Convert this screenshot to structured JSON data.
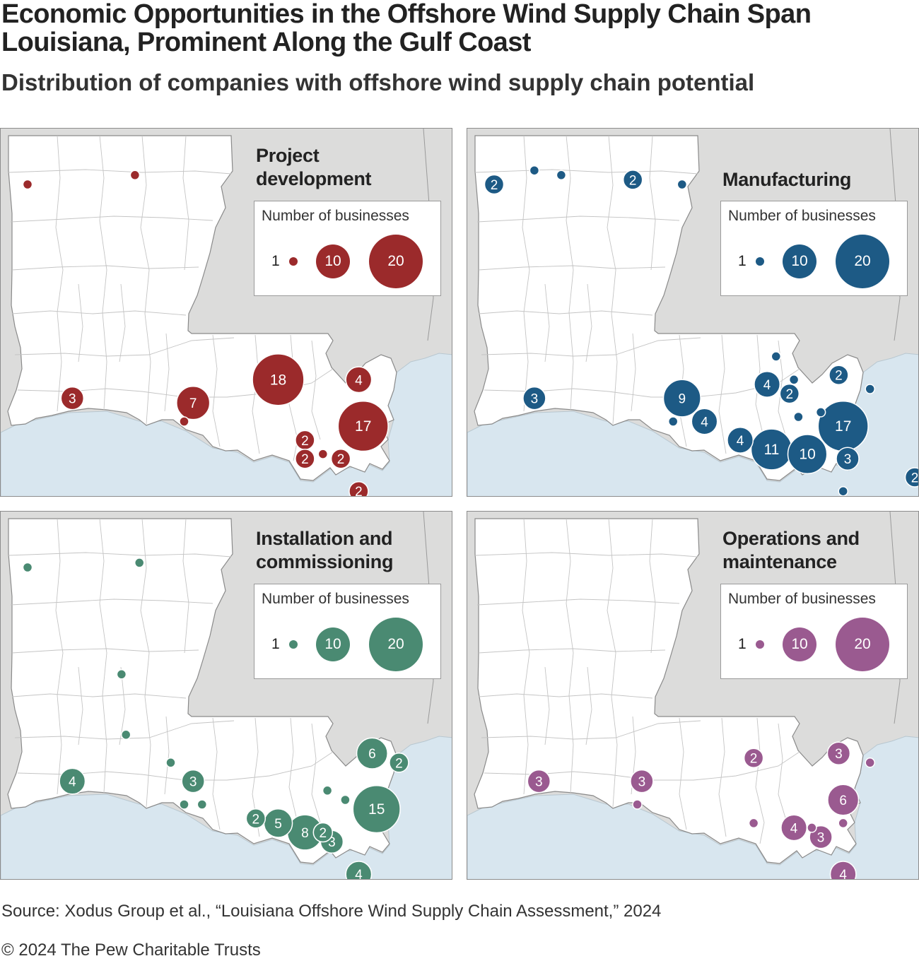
{
  "header": {
    "title": "Economic Opportunities in the Offshore Wind Supply Chain Span Louisiana, Prominent Along the Gulf Coast",
    "subtitle": "Distribution of companies with offshore wind supply chain potential"
  },
  "legend": {
    "title": "Number of businesses",
    "sizes": [
      "1",
      "10",
      "20"
    ]
  },
  "panels": [
    {
      "title_lines": [
        "Project",
        "development"
      ],
      "color": "#9b2a2b",
      "points": [
        {
          "lon": -93.95,
          "lat": 32.55,
          "v": 1,
          "label": ""
        },
        {
          "lon": -92.75,
          "lat": 32.65,
          "v": 1,
          "label": ""
        },
        {
          "lon": -93.45,
          "lat": 30.25,
          "v": 3,
          "label": "3"
        },
        {
          "lon": -92.1,
          "lat": 30.2,
          "v": 7,
          "label": "7"
        },
        {
          "lon": -92.2,
          "lat": 30.0,
          "v": 1,
          "label": ""
        },
        {
          "lon": -91.15,
          "lat": 30.45,
          "v": 18,
          "label": "18"
        },
        {
          "lon": -90.25,
          "lat": 30.45,
          "v": 4,
          "label": "4"
        },
        {
          "lon": -90.2,
          "lat": 29.95,
          "v": 17,
          "label": "17"
        },
        {
          "lon": -90.85,
          "lat": 29.8,
          "v": 2,
          "label": "2"
        },
        {
          "lon": -90.65,
          "lat": 29.65,
          "v": 1,
          "label": ""
        },
        {
          "lon": -90.85,
          "lat": 29.6,
          "v": 2,
          "label": "2"
        },
        {
          "lon": -90.45,
          "lat": 29.6,
          "v": 2,
          "label": "2"
        },
        {
          "lon": -90.25,
          "lat": 29.25,
          "v": 2,
          "label": "2"
        }
      ]
    },
    {
      "title_lines": [
        "Manufacturing"
      ],
      "color": "#1d5a85",
      "points": [
        {
          "lon": -93.95,
          "lat": 32.55,
          "v": 2,
          "label": "2"
        },
        {
          "lon": -93.5,
          "lat": 32.7,
          "v": 1,
          "label": ""
        },
        {
          "lon": -93.2,
          "lat": 32.65,
          "v": 1,
          "label": ""
        },
        {
          "lon": -92.4,
          "lat": 32.6,
          "v": 2,
          "label": "2"
        },
        {
          "lon": -91.85,
          "lat": 32.55,
          "v": 1,
          "label": ""
        },
        {
          "lon": -93.5,
          "lat": 30.25,
          "v": 3,
          "label": "3"
        },
        {
          "lon": -90.8,
          "lat": 30.7,
          "v": 1,
          "label": ""
        },
        {
          "lon": -90.9,
          "lat": 30.4,
          "v": 4,
          "label": "4"
        },
        {
          "lon": -90.6,
          "lat": 30.45,
          "v": 1,
          "label": ""
        },
        {
          "lon": -90.65,
          "lat": 30.3,
          "v": 2,
          "label": "2"
        },
        {
          "lon": -90.1,
          "lat": 30.5,
          "v": 2,
          "label": "2"
        },
        {
          "lon": -89.75,
          "lat": 30.35,
          "v": 1,
          "label": ""
        },
        {
          "lon": -91.85,
          "lat": 30.25,
          "v": 9,
          "label": "9"
        },
        {
          "lon": -91.95,
          "lat": 30.0,
          "v": 1,
          "label": ""
        },
        {
          "lon": -91.6,
          "lat": 30.0,
          "v": 4,
          "label": "4"
        },
        {
          "lon": -90.55,
          "lat": 30.05,
          "v": 1,
          "label": ""
        },
        {
          "lon": -90.3,
          "lat": 30.1,
          "v": 1,
          "label": ""
        },
        {
          "lon": -91.2,
          "lat": 29.8,
          "v": 4,
          "label": "4"
        },
        {
          "lon": -90.85,
          "lat": 29.7,
          "v": 11,
          "label": "11"
        },
        {
          "lon": -90.45,
          "lat": 29.65,
          "v": 10,
          "label": "10"
        },
        {
          "lon": -90.05,
          "lat": 29.95,
          "v": 17,
          "label": "17"
        },
        {
          "lon": -90.0,
          "lat": 29.6,
          "v": 3,
          "label": "3"
        },
        {
          "lon": -90.05,
          "lat": 29.25,
          "v": 1,
          "label": ""
        },
        {
          "lon": -89.25,
          "lat": 29.4,
          "v": 2,
          "label": "2"
        }
      ]
    },
    {
      "title_lines": [
        "Installation and",
        "commissioning"
      ],
      "color": "#4a8a72",
      "points": [
        {
          "lon": -93.95,
          "lat": 32.55,
          "v": 1,
          "label": ""
        },
        {
          "lon": -92.7,
          "lat": 32.6,
          "v": 1,
          "label": ""
        },
        {
          "lon": -92.9,
          "lat": 31.4,
          "v": 1,
          "label": ""
        },
        {
          "lon": -92.85,
          "lat": 30.75,
          "v": 1,
          "label": ""
        },
        {
          "lon": -93.45,
          "lat": 30.25,
          "v": 4,
          "label": "4"
        },
        {
          "lon": -92.35,
          "lat": 30.45,
          "v": 1,
          "label": ""
        },
        {
          "lon": -92.1,
          "lat": 30.25,
          "v": 3,
          "label": "3"
        },
        {
          "lon": -92.2,
          "lat": 30.0,
          "v": 1,
          "label": ""
        },
        {
          "lon": -92.0,
          "lat": 30.0,
          "v": 1,
          "label": ""
        },
        {
          "lon": -90.1,
          "lat": 30.55,
          "v": 6,
          "label": "6"
        },
        {
          "lon": -89.8,
          "lat": 30.45,
          "v": 2,
          "label": "2"
        },
        {
          "lon": -90.6,
          "lat": 30.15,
          "v": 1,
          "label": ""
        },
        {
          "lon": -90.4,
          "lat": 30.05,
          "v": 1,
          "label": ""
        },
        {
          "lon": -90.05,
          "lat": 29.95,
          "v": 15,
          "label": "15"
        },
        {
          "lon": -91.4,
          "lat": 29.85,
          "v": 2,
          "label": "2"
        },
        {
          "lon": -91.15,
          "lat": 29.8,
          "v": 5,
          "label": "5"
        },
        {
          "lon": -90.85,
          "lat": 29.7,
          "v": 8,
          "label": "8"
        },
        {
          "lon": -90.65,
          "lat": 29.7,
          "v": 2,
          "label": "2"
        },
        {
          "lon": -90.55,
          "lat": 29.6,
          "v": 3,
          "label": "3"
        },
        {
          "lon": -90.25,
          "lat": 29.25,
          "v": 4,
          "label": "4"
        }
      ]
    },
    {
      "title_lines": [
        "Operations and",
        "maintenance"
      ],
      "color": "#9a5a90",
      "points": [
        {
          "lon": -93.45,
          "lat": 30.25,
          "v": 3,
          "label": "3"
        },
        {
          "lon": -92.3,
          "lat": 30.25,
          "v": 3,
          "label": "3"
        },
        {
          "lon": -92.35,
          "lat": 30.0,
          "v": 1,
          "label": ""
        },
        {
          "lon": -91.05,
          "lat": 30.5,
          "v": 2,
          "label": "2"
        },
        {
          "lon": -90.1,
          "lat": 30.55,
          "v": 3,
          "label": "3"
        },
        {
          "lon": -89.75,
          "lat": 30.45,
          "v": 1,
          "label": ""
        },
        {
          "lon": -90.05,
          "lat": 30.05,
          "v": 6,
          "label": "6"
        },
        {
          "lon": -90.05,
          "lat": 29.8,
          "v": 1,
          "label": ""
        },
        {
          "lon": -91.05,
          "lat": 29.8,
          "v": 1,
          "label": ""
        },
        {
          "lon": -90.6,
          "lat": 29.75,
          "v": 4,
          "label": "4"
        },
        {
          "lon": -90.4,
          "lat": 29.75,
          "v": 1,
          "label": ""
        },
        {
          "lon": -90.3,
          "lat": 29.65,
          "v": 3,
          "label": "3"
        },
        {
          "lon": -90.05,
          "lat": 29.25,
          "v": 4,
          "label": "4"
        }
      ]
    }
  ],
  "footer": {
    "source": "Source: Xodus Group et al., “Louisiana Offshore Wind Supply Chain Assessment,” 2024",
    "copyright": "© 2024 The Pew Charitable Trusts"
  }
}
